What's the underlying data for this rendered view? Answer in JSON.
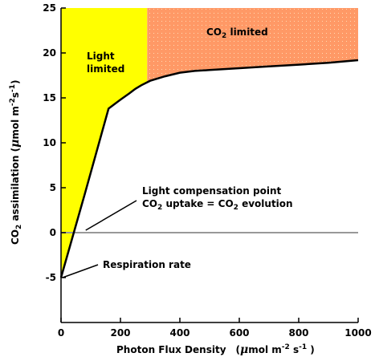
{
  "chart_data": {
    "type": "line",
    "title": "",
    "xlabel": "Photon Flux Density",
    "xlabel_unit": {
      "pre": "(",
      "mu": "μ",
      "mol": "mol m",
      "sup1": "-2",
      "s": " s",
      "sup2": "-1",
      "post": " )"
    },
    "ylabel": "CO",
    "ylabel_sub": "2",
    "ylabel_rest": " assimilation (",
    "ylabel_mu": "μ",
    "ylabel_mol": "mol m",
    "ylabel_sup1": "-2",
    "ylabel_s": "s",
    "ylabel_sup2": "-1",
    "ylabel_close": ")",
    "xlim": [
      0,
      1000
    ],
    "ylim": [
      -10,
      25
    ],
    "xticks": [
      0,
      200,
      400,
      600,
      800,
      1000
    ],
    "yticks": [
      -5,
      0,
      5,
      10,
      15,
      20,
      25
    ],
    "grid": false,
    "legend": "none",
    "series": [
      {
        "x": [
          0,
          80,
          160,
          200,
          230,
          250,
          270,
          300,
          350,
          400,
          450,
          500,
          600,
          700,
          800,
          900,
          1000
        ],
        "y": [
          -5,
          4.3,
          13.8,
          14.8,
          15.5,
          16,
          16.4,
          16.9,
          17.4,
          17.8,
          18.0,
          18.1,
          18.3,
          18.5,
          18.7,
          18.9,
          19.2
        ]
      }
    ],
    "zero_line": 0,
    "regions": {
      "light_limited_until_x": 290,
      "light_limited_color": "#ffff00",
      "co2_limited_color": "#ff9966"
    },
    "annotations": {
      "light_limited": [
        "Light",
        "limited"
      ],
      "co2_limited": {
        "pre": "CO",
        "sub": "2",
        "post": " limited"
      },
      "compensation": {
        "line1": "Light compensation point",
        "line2_pre": "CO",
        "line2_sub": "2",
        "line2_mid": " uptake = CO",
        "line2_sub2": "2",
        "line2_post": " evolution",
        "point": [
          75,
          0
        ]
      },
      "respiration": {
        "text": "Respiration rate",
        "point": [
          0,
          -5
        ]
      }
    }
  }
}
